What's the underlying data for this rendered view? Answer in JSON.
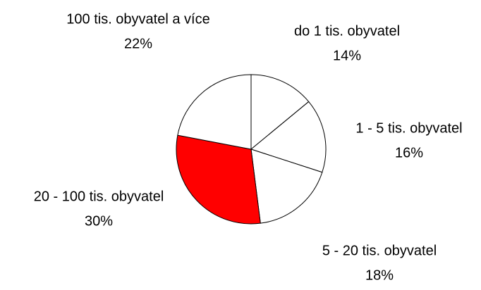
{
  "chart_data": {
    "type": "pie",
    "categories": [
      "do 1 tis. obyvatel",
      "1 - 5 tis. obyvatel",
      "5 - 20 tis. obyvatel",
      "20 - 100 tis. obyvatel",
      "100 tis. obyvatel a více"
    ],
    "values": [
      14,
      16,
      18,
      30,
      22
    ],
    "value_labels": [
      "14%",
      "16%",
      "18%",
      "30%",
      "22%"
    ],
    "colors": [
      "#ffffff",
      "#ffffff",
      "#ffffff",
      "#ff0000",
      "#ffffff"
    ]
  }
}
